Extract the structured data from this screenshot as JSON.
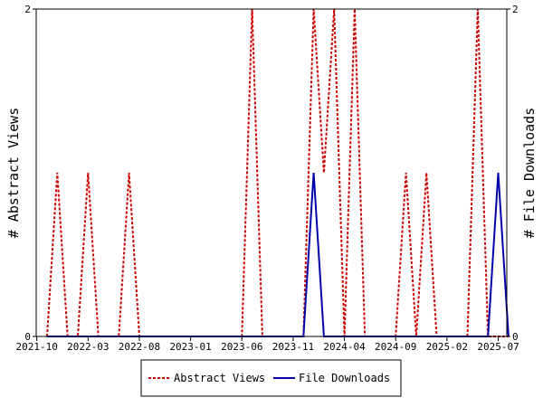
{
  "chart_data": {
    "type": "line",
    "x": [
      "2021-11",
      "2021-12",
      "2022-01",
      "2022-02",
      "2022-03",
      "2022-04",
      "2022-05",
      "2022-06",
      "2022-07",
      "2022-08",
      "2022-09",
      "2022-10",
      "2022-11",
      "2022-12",
      "2023-01",
      "2023-02",
      "2023-03",
      "2023-04",
      "2023-05",
      "2023-06",
      "2023-07",
      "2023-08",
      "2023-09",
      "2023-10",
      "2023-11",
      "2023-12",
      "2024-01",
      "2024-02",
      "2024-03",
      "2024-04",
      "2024-05",
      "2024-06",
      "2024-07",
      "2024-08",
      "2024-09",
      "2024-10",
      "2024-11",
      "2024-12",
      "2025-01",
      "2025-02",
      "2025-03",
      "2025-04",
      "2025-05",
      "2025-06",
      "2025-07",
      "2025-08"
    ],
    "xticks": [
      "2021-10",
      "2022-03",
      "2022-08",
      "2023-01",
      "2023-06",
      "2023-11",
      "2024-04",
      "2024-09",
      "2025-02",
      "2025-07"
    ],
    "y_left_ticks": [
      "0",
      "2"
    ],
    "y_right_ticks": [
      "0",
      "2"
    ],
    "ylabel": "# Abstract Views",
    "ylabel_right": "# File Downloads",
    "ylim": [
      0,
      2
    ],
    "series": [
      {
        "name": "Abstract Views",
        "color": "#cc0000",
        "style": "dashed",
        "values": [
          0,
          1,
          0,
          0,
          1,
          0,
          0,
          0,
          1,
          0,
          0,
          0,
          0,
          0,
          0,
          0,
          0,
          0,
          0,
          0,
          2,
          0,
          0,
          0,
          0,
          0,
          2,
          1,
          2,
          0,
          2,
          0,
          0,
          0,
          0,
          1,
          0,
          1,
          0,
          0,
          0,
          0,
          2,
          0,
          0,
          0
        ]
      },
      {
        "name": "File Downloads",
        "color": "#0000aa",
        "style": "solid",
        "values": [
          0,
          0,
          0,
          0,
          0,
          0,
          0,
          0,
          0,
          0,
          0,
          0,
          0,
          0,
          0,
          0,
          0,
          0,
          0,
          0,
          0,
          0,
          0,
          0,
          0,
          0,
          1,
          0,
          0,
          0,
          0,
          0,
          0,
          0,
          0,
          0,
          0,
          0,
          0,
          0,
          0,
          0,
          0,
          0,
          1,
          0
        ]
      }
    ],
    "legend_position": "bottom"
  }
}
